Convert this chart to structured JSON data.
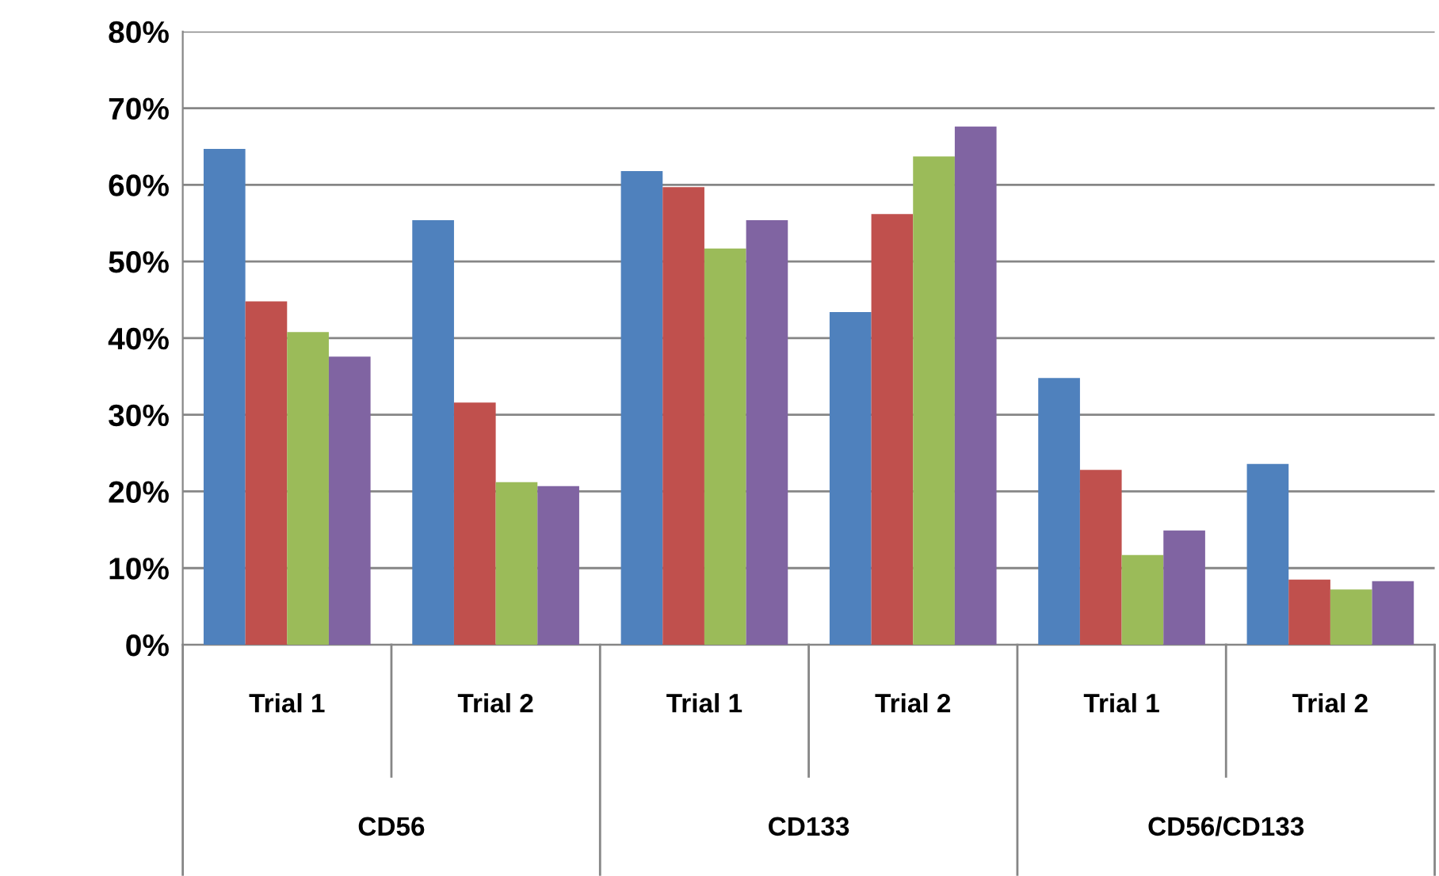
{
  "chart_data": {
    "type": "bar",
    "categories": [
      "Trial 1",
      "Trial 2",
      "Trial 1",
      "Trial 2",
      "Trial 1",
      "Trial 2"
    ],
    "annotations": [
      "CD56",
      "CD133",
      "CD56/CD133"
    ],
    "series": [
      {
        "color": "#4f81bd",
        "values": [
          64.7,
          55.4,
          61.8,
          43.4,
          34.8,
          23.6
        ]
      },
      {
        "color": "#c0504d",
        "values": [
          44.8,
          31.6,
          59.7,
          56.2,
          22.8,
          8.5
        ]
      },
      {
        "color": "#9bbb59",
        "values": [
          40.8,
          21.2,
          51.7,
          63.7,
          11.7,
          7.2
        ]
      },
      {
        "color": "#8064a2",
        "values": [
          37.6,
          20.7,
          55.4,
          67.6,
          14.9,
          8.3
        ]
      }
    ],
    "ylim": [
      0,
      80
    ],
    "yticks": [
      {
        "value": 0,
        "label": "0%"
      },
      {
        "value": 10,
        "label": "10%"
      },
      {
        "value": 20,
        "label": "20%"
      },
      {
        "value": 30,
        "label": "30%"
      },
      {
        "value": 40,
        "label": "40%"
      },
      {
        "value": 50,
        "label": "50%"
      },
      {
        "value": 60,
        "label": "60%"
      },
      {
        "value": 70,
        "label": "70%"
      },
      {
        "value": 80,
        "label": "80%"
      }
    ],
    "grid": "y"
  }
}
